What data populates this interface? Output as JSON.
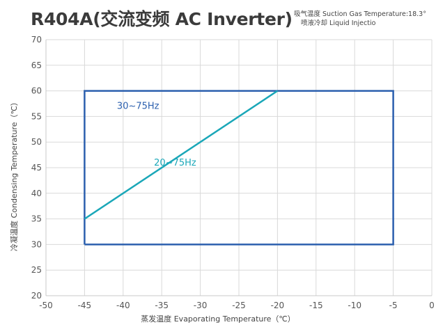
{
  "chart_data": {
    "type": "line",
    "title": "R404A(交流变频 AC Inverter)",
    "notes": [
      "吸气温度 Suction Gas Temperature:18.3°",
      "喷液冷却  Liquid Injectio"
    ],
    "xlabel": "蒸发温度 Evaporating Temperature（℃）",
    "ylabel": "冷凝温度 Condensing Temperature（℃）",
    "xlim": [
      -50,
      0
    ],
    "ylim": [
      20,
      70
    ],
    "xticks": [
      -50,
      -45,
      -40,
      -35,
      -30,
      -25,
      -20,
      -15,
      -10,
      -5,
      0
    ],
    "yticks": [
      20,
      25,
      30,
      35,
      40,
      45,
      50,
      55,
      60,
      65,
      70
    ],
    "grid": true,
    "series": [
      {
        "name": "30~75Hz",
        "color": "#2b5fae",
        "x": [
          -45,
          -45,
          -5,
          -5,
          -45
        ],
        "y": [
          30,
          60,
          60,
          30,
          30
        ]
      },
      {
        "name": "20~75Hz",
        "color": "#1aa7b8",
        "x": [
          -45,
          -20
        ],
        "y": [
          35,
          60
        ]
      }
    ],
    "annotations": [
      {
        "text": "30~75Hz",
        "x": -40.8,
        "y": 56.5,
        "color": "#2b5fae"
      },
      {
        "text": "20~75Hz",
        "x": -36,
        "y": 45.4,
        "color": "#1aa7b8"
      }
    ]
  }
}
